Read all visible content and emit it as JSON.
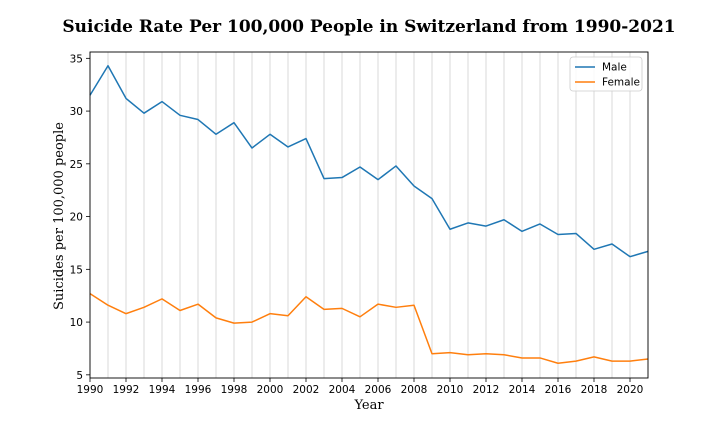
{
  "chart_data": {
    "type": "line",
    "title": "Suicide Rate Per 100,000 People in Switzerland from 1990-2021",
    "xlabel": "Year",
    "ylabel": "Suicides per 100,000 people",
    "xlim": [
      1990,
      2021
    ],
    "ylim": [
      4.7,
      35.6
    ],
    "xticks": [
      1990,
      1992,
      1994,
      1996,
      1998,
      2000,
      2002,
      2004,
      2006,
      2008,
      2010,
      2012,
      2014,
      2016,
      2018,
      2020
    ],
    "yticks": [
      5,
      10,
      15,
      20,
      25,
      30,
      35
    ],
    "grid": "vertical",
    "legend": "top-right",
    "x": [
      1990,
      1991,
      1992,
      1993,
      1994,
      1995,
      1996,
      1997,
      1998,
      1999,
      2000,
      2001,
      2002,
      2003,
      2004,
      2005,
      2006,
      2007,
      2008,
      2009,
      2010,
      2011,
      2012,
      2013,
      2014,
      2015,
      2016,
      2017,
      2018,
      2019,
      2020,
      2021
    ],
    "series": [
      {
        "name": "Male",
        "color": "#1f77b4",
        "values": [
          31.5,
          34.3,
          31.2,
          29.8,
          30.9,
          29.6,
          29.2,
          27.8,
          28.9,
          26.5,
          27.8,
          26.6,
          27.4,
          23.6,
          23.7,
          24.7,
          23.5,
          24.8,
          22.9,
          21.7,
          18.8,
          19.4,
          19.1,
          19.7,
          18.6,
          19.3,
          18.3,
          18.4,
          16.9,
          17.4,
          16.2,
          16.7
        ]
      },
      {
        "name": "Female",
        "color": "#ff7f0e",
        "values": [
          12.7,
          11.6,
          10.8,
          11.4,
          12.2,
          11.1,
          11.7,
          10.4,
          9.9,
          10.0,
          10.8,
          10.6,
          12.4,
          11.2,
          11.3,
          10.5,
          11.7,
          11.4,
          11.6,
          7.0,
          7.1,
          6.9,
          7.0,
          6.9,
          6.6,
          6.6,
          6.1,
          6.3,
          6.7,
          6.3,
          6.3,
          6.5
        ]
      }
    ]
  }
}
